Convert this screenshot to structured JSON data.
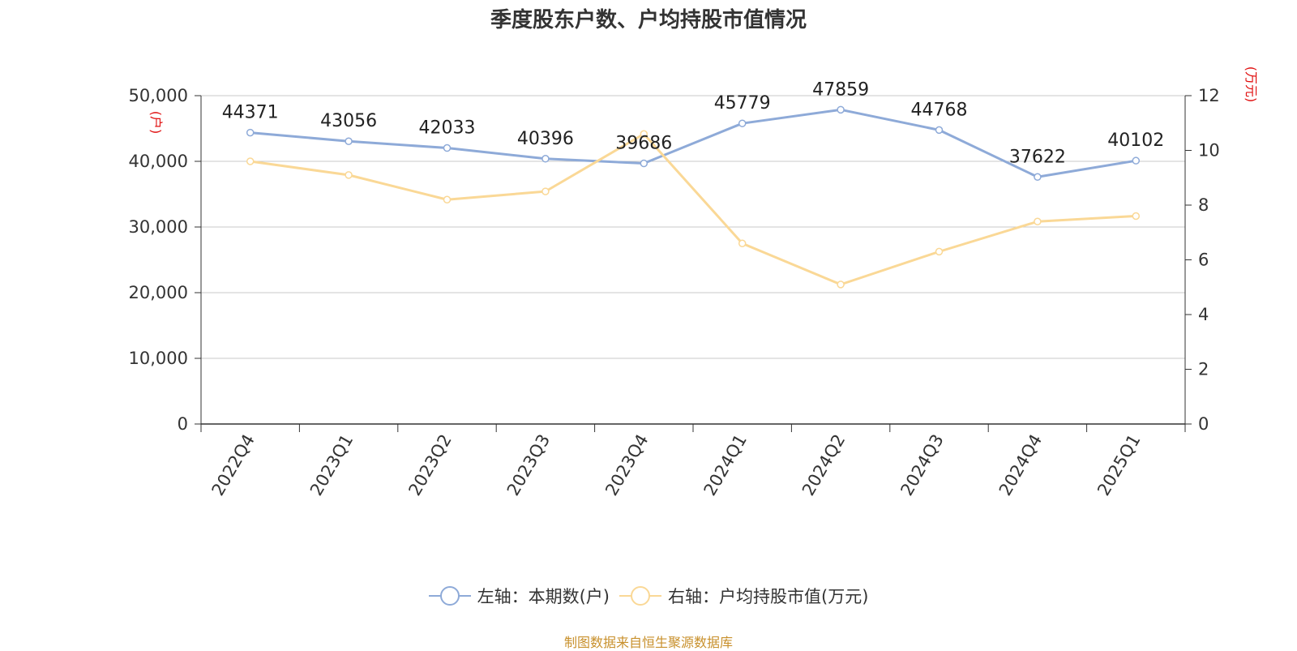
{
  "chart_data": {
    "type": "line",
    "title": "季度股东户数、户均持股市值情况",
    "categories": [
      "2022Q4",
      "2023Q1",
      "2023Q2",
      "2023Q3",
      "2023Q4",
      "2024Q1",
      "2024Q2",
      "2024Q3",
      "2024Q4",
      "2025Q1"
    ],
    "series": [
      {
        "name": "左轴：本期数(户)",
        "axis": "left",
        "color": "#8eaad8",
        "values": [
          44371,
          43056,
          42033,
          40396,
          39686,
          45779,
          47859,
          44768,
          37622,
          40102
        ]
      },
      {
        "name": "右轴：户均持股市值(万元)",
        "axis": "right",
        "color": "#fad896",
        "values": [
          9.6,
          9.1,
          8.2,
          8.5,
          10.6,
          6.6,
          5.1,
          6.3,
          7.4,
          7.6
        ]
      }
    ],
    "y_left": {
      "label": "(户)",
      "range": [
        0,
        50000
      ],
      "ticks": [
        0,
        10000,
        20000,
        30000,
        40000,
        50000
      ],
      "tick_labels": [
        "0",
        "10,000",
        "20,000",
        "30,000",
        "40,000",
        "50,000"
      ]
    },
    "y_right": {
      "label": "(万元)",
      "range": [
        0,
        12
      ],
      "ticks": [
        0,
        2,
        4,
        6,
        8,
        10,
        12
      ],
      "tick_labels": [
        "0",
        "2",
        "4",
        "6",
        "8",
        "10",
        "12"
      ]
    },
    "data_labels": [
      "44371",
      "43056",
      "42033",
      "40396",
      "39686",
      "45779",
      "47859",
      "44768",
      "37622",
      "40102"
    ],
    "grid": true,
    "legend_position": "bottom"
  },
  "source": "制图数据来自恒生聚源数据库"
}
